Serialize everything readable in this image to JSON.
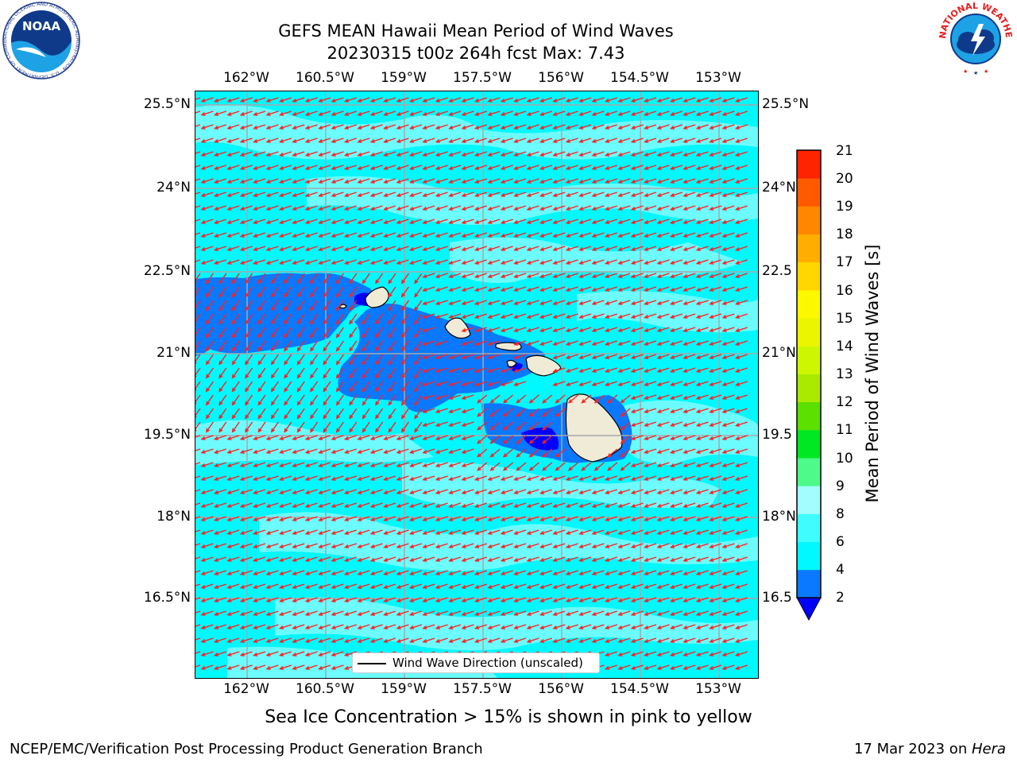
{
  "title": {
    "line1": "GEFS MEAN Hawaii Mean Period of Wind Waves",
    "line2": "20230315 t00z 264h fcst   Max: 7.43"
  },
  "logos": {
    "noaa_text": "NOAA",
    "noaa_ring_text": "NATIONAL OCEANIC AND ATMOSPHERIC ADMINISTRATION · U.S. DEPARTMENT OF COMMERCE",
    "nws_ring_text": "NATIONAL WEATHER SERVICE"
  },
  "map": {
    "lon_ticks": [
      "162°W",
      "160.5°W",
      "159°W",
      "157.5°W",
      "156°W",
      "154.5°W",
      "153°W"
    ],
    "lat_ticks": [
      "25.5°N",
      "24°N",
      "22.5°N",
      "21°N",
      "19.5°N",
      "18°N",
      "16.5°N"
    ],
    "lat_ticks_right": [
      "25.5°N",
      "24°N",
      "22.5",
      "21°N",
      "19.5",
      "18°N",
      "16.5"
    ],
    "legend_label": "Wind Wave Direction (unscaled)",
    "colors": {
      "land": "#efebd7",
      "sea_light": "#6cfcff",
      "sea_cyan": "#00f8ff",
      "sea_blue": "#0a78ff",
      "sea_dark": "#0000ff",
      "arrow": "#ff2020",
      "grid": "#a8a8a8"
    }
  },
  "colorbar": {
    "label": "Mean Period of Wind Waves [s]",
    "ticks": [
      "2",
      "4",
      "6",
      "8",
      "9",
      "10",
      "11",
      "12",
      "13",
      "14",
      "15",
      "16",
      "17",
      "18",
      "19",
      "20",
      "21"
    ],
    "colors": [
      "#0a78ff",
      "#00f8ff",
      "#3efcff",
      "#a3fdff",
      "#4dfa8a",
      "#00e823",
      "#5be000",
      "#a9ea00",
      "#cdf700",
      "#ebf500",
      "#fbf800",
      "#ffd600",
      "#ffad00",
      "#ff8700",
      "#ff5a00",
      "#ff2400"
    ],
    "under_color": "#0000ff"
  },
  "caption": "Sea Ice Concentration > 15% is shown in pink to yellow",
  "footer": {
    "left": "NCEP/EMC/Verification Post Processing Product Generation Branch",
    "right_prefix": "17 Mar 2023 on ",
    "right_host": "Hera"
  }
}
